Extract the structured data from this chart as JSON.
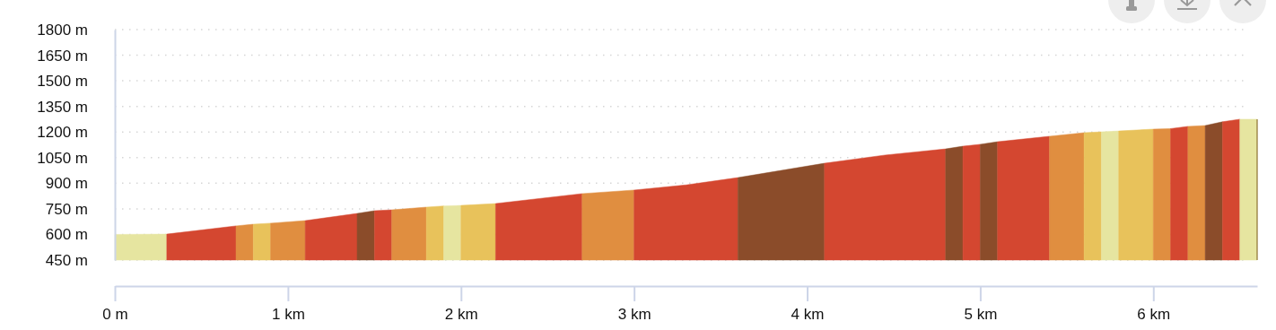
{
  "chart_data": {
    "type": "area",
    "xlim": [
      0,
      6.6
    ],
    "ylim": [
      450,
      1800
    ],
    "xticks": [
      {
        "value": 0,
        "label": "0 m"
      },
      {
        "value": 1,
        "label": "1 km"
      },
      {
        "value": 2,
        "label": "2 km"
      },
      {
        "value": 3,
        "label": "3 km"
      },
      {
        "value": 4,
        "label": "4 km"
      },
      {
        "value": 5,
        "label": "5 km"
      },
      {
        "value": 6,
        "label": "6 km"
      }
    ],
    "yticks": [
      {
        "value": 450,
        "label": "450 m"
      },
      {
        "value": 600,
        "label": "600 m"
      },
      {
        "value": 750,
        "label": "750 m"
      },
      {
        "value": 900,
        "label": "900 m"
      },
      {
        "value": 1050,
        "label": "1050 m"
      },
      {
        "value": 1200,
        "label": "1200 m"
      },
      {
        "value": 1350,
        "label": "1350 m"
      },
      {
        "value": 1500,
        "label": "1500 m"
      },
      {
        "value": 1650,
        "label": "1650 m"
      },
      {
        "value": 1800,
        "label": "1800 m"
      }
    ],
    "grid": "y",
    "series": [
      {
        "color": "#e6e5a0",
        "x": [
          0,
          0.3
        ],
        "values": [
          600,
          602
        ]
      },
      {
        "color": "#d44730",
        "x": [
          0.3,
          0.7
        ],
        "values": [
          602,
          650
        ]
      },
      {
        "color": "#e08e40",
        "x": [
          0.7,
          0.8
        ],
        "values": [
          650,
          660
        ]
      },
      {
        "color": "#e8c25b",
        "x": [
          0.8,
          0.9
        ],
        "values": [
          660,
          666
        ]
      },
      {
        "color": "#e08e40",
        "x": [
          0.9,
          1.1
        ],
        "values": [
          666,
          681
        ]
      },
      {
        "color": "#d44730",
        "x": [
          1.1,
          1.4
        ],
        "values": [
          681,
          723
        ]
      },
      {
        "color": "#8b4c2a",
        "x": [
          1.4,
          1.5
        ],
        "values": [
          723,
          739
        ]
      },
      {
        "color": "#d44730",
        "x": [
          1.5,
          1.6
        ],
        "values": [
          739,
          744
        ]
      },
      {
        "color": "#e08e40",
        "x": [
          1.6,
          1.8
        ],
        "values": [
          744,
          760
        ]
      },
      {
        "color": "#e8c25b",
        "x": [
          1.8,
          1.9
        ],
        "values": [
          760,
          767
        ]
      },
      {
        "color": "#e6e5a0",
        "x": [
          1.9,
          2.0
        ],
        "values": [
          767,
          770
        ]
      },
      {
        "color": "#e8c25b",
        "x": [
          2.0,
          2.2
        ],
        "values": [
          770,
          781
        ]
      },
      {
        "color": "#d44730",
        "x": [
          2.2,
          2.7
        ],
        "values": [
          781,
          839
        ]
      },
      {
        "color": "#e08e40",
        "x": [
          2.7,
          3.0
        ],
        "values": [
          839,
          860
        ]
      },
      {
        "color": "#d44730",
        "x": [
          3.0,
          3.3,
          3.6
        ],
        "values": [
          860,
          890,
          933
        ]
      },
      {
        "color": "#8b4c2a",
        "x": [
          3.6,
          4.1
        ],
        "values": [
          933,
          1017
        ]
      },
      {
        "color": "#d44730",
        "x": [
          4.1,
          4.45,
          4.8
        ],
        "values": [
          1017,
          1065,
          1101
        ]
      },
      {
        "color": "#8b4c2a",
        "x": [
          4.8,
          4.9
        ],
        "values": [
          1101,
          1117
        ]
      },
      {
        "color": "#d44730",
        "x": [
          4.9,
          5.0
        ],
        "values": [
          1117,
          1128
        ]
      },
      {
        "color": "#8b4c2a",
        "x": [
          5.0,
          5.1
        ],
        "values": [
          1128,
          1143
        ]
      },
      {
        "color": "#d44730",
        "x": [
          5.1,
          5.4
        ],
        "values": [
          1143,
          1175
        ]
      },
      {
        "color": "#e08e40",
        "x": [
          5.4,
          5.6
        ],
        "values": [
          1175,
          1196
        ]
      },
      {
        "color": "#e8c25b",
        "x": [
          5.6,
          5.7
        ],
        "values": [
          1196,
          1201
        ]
      },
      {
        "color": "#e6e5a0",
        "x": [
          5.7,
          5.8
        ],
        "values": [
          1201,
          1206
        ]
      },
      {
        "color": "#e8c25b",
        "x": [
          5.8,
          6.0
        ],
        "values": [
          1206,
          1217
        ]
      },
      {
        "color": "#e08e40",
        "x": [
          6.0,
          6.1
        ],
        "values": [
          1217,
          1220
        ]
      },
      {
        "color": "#d44730",
        "x": [
          6.1,
          6.2
        ],
        "values": [
          1220,
          1233
        ]
      },
      {
        "color": "#e08e40",
        "x": [
          6.2,
          6.3
        ],
        "values": [
          1233,
          1238
        ]
      },
      {
        "color": "#8b4c2a",
        "x": [
          6.3,
          6.4
        ],
        "values": [
          1238,
          1260
        ]
      },
      {
        "color": "#d44730",
        "x": [
          6.4,
          6.5
        ],
        "values": [
          1260,
          1275
        ]
      },
      {
        "color": "#e6e5a0",
        "x": [
          6.5,
          6.6
        ],
        "values": [
          1275,
          1275
        ]
      }
    ]
  }
}
